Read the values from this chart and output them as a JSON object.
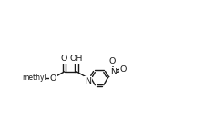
{
  "bg_color": "#ffffff",
  "line_color": "#1a1a1a",
  "line_width": 1.0,
  "font_size": 6.8,
  "fig_width": 2.24,
  "fig_height": 1.53,
  "dpi": 100,
  "xlim": [
    -0.5,
    10.5
  ],
  "ylim": [
    1.0,
    7.2
  ]
}
